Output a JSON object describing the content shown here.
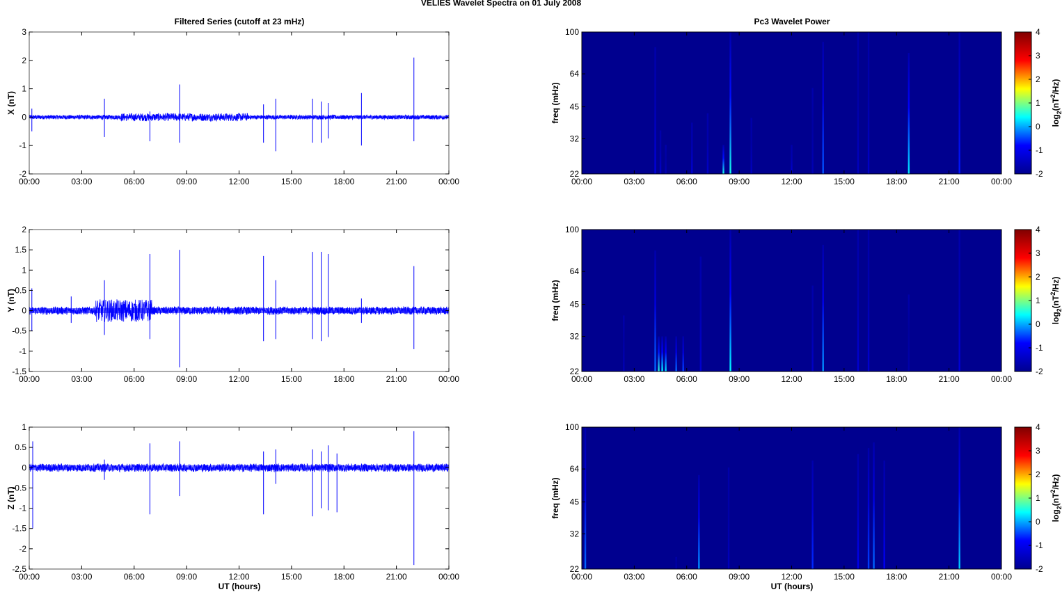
{
  "figure": {
    "title": "VELIES Wavelet Spectra on 01 July      2008",
    "left_title": "Filtered Series (cutoff at 23 mHz)",
    "right_title": "Pc3 Wavelet Power",
    "xlabel": "UT (hours)"
  },
  "colors": {
    "trace": "#0000ff",
    "spec_bg": "#00008f",
    "axis": "#000000",
    "colormap": [
      "#00008f",
      "#0000ff",
      "#00ffff",
      "#ffff00",
      "#ff0000",
      "#800000"
    ]
  },
  "chart_data": [
    {
      "type": "line",
      "panel": "X",
      "ylabel": "X (nT)",
      "xlim": [
        0,
        24
      ],
      "ylim": [
        -2,
        3
      ],
      "yticks": [
        "3",
        "2",
        "1",
        "0",
        "-1",
        "-2"
      ],
      "xticks": [
        "00:00",
        "03:00",
        "06:00",
        "09:00",
        "12:00",
        "15:00",
        "18:00",
        "21:00",
        "00:00"
      ],
      "noise_amplitude": 0.08,
      "bursts": [
        {
          "x_range": [
            5.2,
            12.5
          ],
          "amplitude": 0.14
        }
      ],
      "spikes": [
        {
          "x": 0.15,
          "min": -0.5,
          "max": 0.3
        },
        {
          "x": 4.3,
          "min": -0.7,
          "max": 0.65
        },
        {
          "x": 6.9,
          "min": -0.85,
          "max": 0.2
        },
        {
          "x": 8.6,
          "min": -0.9,
          "max": 1.15
        },
        {
          "x": 13.4,
          "min": -0.9,
          "max": 0.45
        },
        {
          "x": 14.1,
          "min": -1.2,
          "max": 0.65
        },
        {
          "x": 16.2,
          "min": -0.9,
          "max": 0.65
        },
        {
          "x": 16.7,
          "min": -0.9,
          "max": 0.55
        },
        {
          "x": 17.1,
          "min": -0.75,
          "max": 0.5
        },
        {
          "x": 19.0,
          "min": -1.0,
          "max": 0.85
        },
        {
          "x": 22.0,
          "min": -0.85,
          "max": 2.1
        }
      ]
    },
    {
      "type": "line",
      "panel": "Y",
      "ylabel": "Y (nT)",
      "xlim": [
        0,
        24
      ],
      "ylim": [
        -1.5,
        2
      ],
      "yticks": [
        "2",
        "1.5",
        "1",
        "0.5",
        "0",
        "-0.5",
        "-1",
        "-1.5"
      ],
      "xticks": [
        "00:00",
        "03:00",
        "06:00",
        "09:00",
        "12:00",
        "15:00",
        "18:00",
        "21:00",
        "00:00"
      ],
      "noise_amplitude": 0.1,
      "bursts": [
        {
          "x_range": [
            3.8,
            7.0
          ],
          "amplitude": 0.28
        }
      ],
      "spikes": [
        {
          "x": 0.15,
          "min": -0.5,
          "max": 0.55
        },
        {
          "x": 2.4,
          "min": -0.3,
          "max": 0.35
        },
        {
          "x": 4.3,
          "min": -0.6,
          "max": 0.75
        },
        {
          "x": 6.9,
          "min": -0.7,
          "max": 1.4
        },
        {
          "x": 8.6,
          "min": -1.4,
          "max": 1.5
        },
        {
          "x": 13.4,
          "min": -0.75,
          "max": 1.35
        },
        {
          "x": 14.1,
          "min": -0.7,
          "max": 0.75
        },
        {
          "x": 16.2,
          "min": -0.7,
          "max": 1.45
        },
        {
          "x": 16.7,
          "min": -0.75,
          "max": 1.45
        },
        {
          "x": 17.1,
          "min": -0.65,
          "max": 1.4
        },
        {
          "x": 19.0,
          "min": -0.3,
          "max": 0.3
        },
        {
          "x": 22.0,
          "min": -0.95,
          "max": 1.1
        }
      ]
    },
    {
      "type": "line",
      "panel": "Z",
      "ylabel": "Z (nT)",
      "xlim": [
        0,
        24
      ],
      "ylim": [
        -2.5,
        1
      ],
      "yticks": [
        "1",
        "0.5",
        "0",
        "-0.5",
        "-1",
        "-1.5",
        "-2",
        "-2.5"
      ],
      "xticks": [
        "00:00",
        "03:00",
        "06:00",
        "09:00",
        "12:00",
        "15:00",
        "18:00",
        "21:00",
        "00:00"
      ],
      "noise_amplitude": 0.1,
      "bursts": [],
      "spikes": [
        {
          "x": 0.2,
          "min": -1.5,
          "max": 0.65
        },
        {
          "x": 4.3,
          "min": -0.3,
          "max": 0.2
        },
        {
          "x": 6.9,
          "min": -1.15,
          "max": 0.6
        },
        {
          "x": 8.6,
          "min": -0.7,
          "max": 0.65
        },
        {
          "x": 13.4,
          "min": -1.15,
          "max": 0.4
        },
        {
          "x": 14.1,
          "min": -0.4,
          "max": 0.45
        },
        {
          "x": 16.2,
          "min": -1.2,
          "max": 0.45
        },
        {
          "x": 16.7,
          "min": -1.0,
          "max": 0.4
        },
        {
          "x": 17.1,
          "min": -1.05,
          "max": 0.55
        },
        {
          "x": 17.6,
          "min": -1.1,
          "max": 0.35
        },
        {
          "x": 22.0,
          "min": -2.4,
          "max": 0.9
        }
      ]
    },
    {
      "type": "heatmap",
      "panel": "Pc3 X",
      "ylabel": "freq (mHz)",
      "xlim": [
        0,
        24
      ],
      "ylim": [
        22,
        100
      ],
      "yticks": [
        100,
        64,
        45,
        32,
        22
      ],
      "xticks": [
        "00:00",
        "03:00",
        "06:00",
        "09:00",
        "12:00",
        "15:00",
        "18:00",
        "21:00",
        "00:00"
      ],
      "colorbar": {
        "label": "log2(nT2/Hz)",
        "range": [
          -2,
          4
        ],
        "ticks": [
          "4",
          "3",
          "2",
          "1",
          "0",
          "-1",
          "-2"
        ]
      },
      "streaks": [
        {
          "x": 4.2,
          "fmax": 85,
          "peak": -1.2
        },
        {
          "x": 4.5,
          "fmax": 35,
          "peak": -1.4
        },
        {
          "x": 4.8,
          "fmax": 30,
          "peak": -1.6
        },
        {
          "x": 6.3,
          "fmax": 38,
          "peak": -1.3
        },
        {
          "x": 7.2,
          "fmax": 42,
          "peak": -1.4
        },
        {
          "x": 8.1,
          "fmax": 30,
          "peak": 0.5
        },
        {
          "x": 8.5,
          "fmax": 100,
          "peak": 0.5
        },
        {
          "x": 9.7,
          "fmax": 40,
          "peak": -1.5
        },
        {
          "x": 12.0,
          "fmax": 30,
          "peak": -1.3
        },
        {
          "x": 13.2,
          "fmax": 55,
          "peak": -1.6
        },
        {
          "x": 13.8,
          "fmax": 90,
          "peak": -0.4
        },
        {
          "x": 15.8,
          "fmax": 100,
          "peak": -1.5
        },
        {
          "x": 16.4,
          "fmax": 100,
          "peak": -1.4
        },
        {
          "x": 18.7,
          "fmax": 80,
          "peak": 0.3
        },
        {
          "x": 21.6,
          "fmax": 100,
          "peak": -0.7
        }
      ]
    },
    {
      "type": "heatmap",
      "panel": "Pc3 Y",
      "ylabel": "freq (mHz)",
      "xlim": [
        0,
        24
      ],
      "ylim": [
        22,
        100
      ],
      "yticks": [
        100,
        64,
        45,
        32,
        22
      ],
      "xticks": [
        "00:00",
        "03:00",
        "06:00",
        "09:00",
        "12:00",
        "15:00",
        "18:00",
        "21:00",
        "00:00"
      ],
      "colorbar": {
        "label": "log2(nT2/Hz)",
        "range": [
          -2,
          4
        ],
        "ticks": [
          "4",
          "3",
          "2",
          "1",
          "0",
          "-1",
          "-2"
        ]
      },
      "streaks": [
        {
          "x": 2.4,
          "fmax": 40,
          "peak": -1.6
        },
        {
          "x": 4.2,
          "fmax": 80,
          "peak": -0.3
        },
        {
          "x": 4.4,
          "fmax": 32,
          "peak": 0.6
        },
        {
          "x": 4.6,
          "fmax": 32,
          "peak": 0.4
        },
        {
          "x": 4.8,
          "fmax": 32,
          "peak": 0.3
        },
        {
          "x": 5.4,
          "fmax": 32,
          "peak": -0.3
        },
        {
          "x": 5.8,
          "fmax": 32,
          "peak": -0.5
        },
        {
          "x": 6.8,
          "fmax": 75,
          "peak": -1.3
        },
        {
          "x": 8.5,
          "fmax": 100,
          "peak": 0.4
        },
        {
          "x": 13.2,
          "fmax": 55,
          "peak": -1.4
        },
        {
          "x": 13.8,
          "fmax": 85,
          "peak": -0.1
        },
        {
          "x": 15.8,
          "fmax": 100,
          "peak": -1.3
        },
        {
          "x": 16.4,
          "fmax": 100,
          "peak": -1.3
        },
        {
          "x": 18.7,
          "fmax": 50,
          "peak": -1.7
        },
        {
          "x": 21.6,
          "fmax": 100,
          "peak": -1.2
        }
      ]
    },
    {
      "type": "heatmap",
      "panel": "Pc3 Z",
      "ylabel": "freq (mHz)",
      "xlim": [
        0,
        24
      ],
      "ylim": [
        22,
        100
      ],
      "yticks": [
        100,
        64,
        45,
        32,
        22
      ],
      "xticks": [
        "00:00",
        "03:00",
        "06:00",
        "09:00",
        "12:00",
        "15:00",
        "18:00",
        "21:00",
        "00:00"
      ],
      "colorbar": {
        "label": "log2(nT2/Hz)",
        "range": [
          -2,
          4
        ],
        "ticks": [
          "4",
          "3",
          "2",
          "1",
          "0",
          "-1",
          "-2"
        ]
      },
      "streaks": [
        {
          "x": 0.2,
          "fmax": 100,
          "peak": -0.3
        },
        {
          "x": 5.4,
          "fmax": 25,
          "peak": -1.7
        },
        {
          "x": 6.7,
          "fmax": 60,
          "peak": -0.1
        },
        {
          "x": 8.4,
          "fmax": 65,
          "peak": -1.5
        },
        {
          "x": 13.2,
          "fmax": 70,
          "peak": -0.6
        },
        {
          "x": 15.8,
          "fmax": 75,
          "peak": -1.0
        },
        {
          "x": 16.4,
          "fmax": 80,
          "peak": -0.5
        },
        {
          "x": 16.7,
          "fmax": 85,
          "peak": -0.3
        },
        {
          "x": 17.3,
          "fmax": 70,
          "peak": -0.9
        },
        {
          "x": 21.6,
          "fmax": 100,
          "peak": 0.2
        }
      ]
    }
  ]
}
